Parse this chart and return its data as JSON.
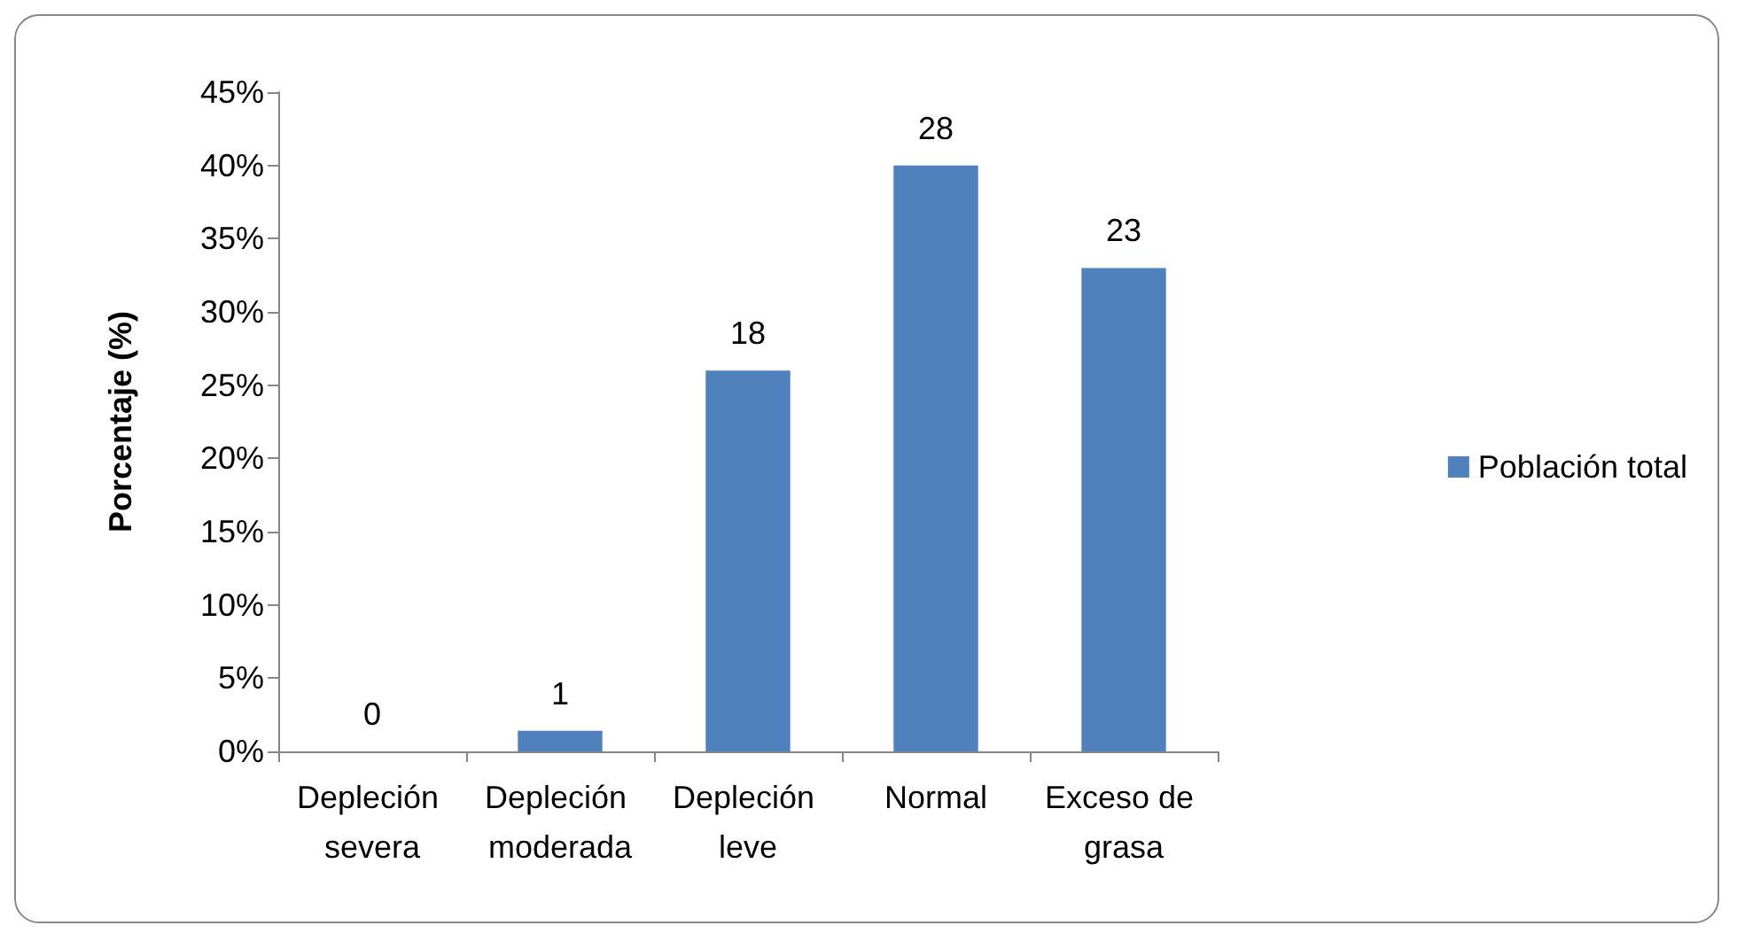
{
  "chart_data": {
    "type": "bar",
    "ylabel": "Porcentaje (%)",
    "categories": [
      "Depleción severa",
      "Depleción moderada",
      "Depleción leve",
      "Normal",
      "Exceso de grasa"
    ],
    "series": [
      {
        "name": "Población total",
        "color": "#4f81bd",
        "values": [
          0,
          1.4,
          26,
          40,
          33
        ]
      }
    ],
    "value_labels": [
      "0",
      "1",
      "18",
      "28",
      "23"
    ],
    "ylim": [
      0,
      45
    ],
    "yticks": [
      {
        "value": 0,
        "label": "0%"
      },
      {
        "value": 5,
        "label": "5%"
      },
      {
        "value": 10,
        "label": "10%"
      },
      {
        "value": 15,
        "label": "15%"
      },
      {
        "value": 20,
        "label": "20%"
      },
      {
        "value": 25,
        "label": "25%"
      },
      {
        "value": 30,
        "label": "30%"
      },
      {
        "value": 35,
        "label": "35%"
      },
      {
        "value": 40,
        "label": "40%"
      },
      {
        "value": 45,
        "label": "45%"
      }
    ],
    "grid": false,
    "legend": "right"
  }
}
